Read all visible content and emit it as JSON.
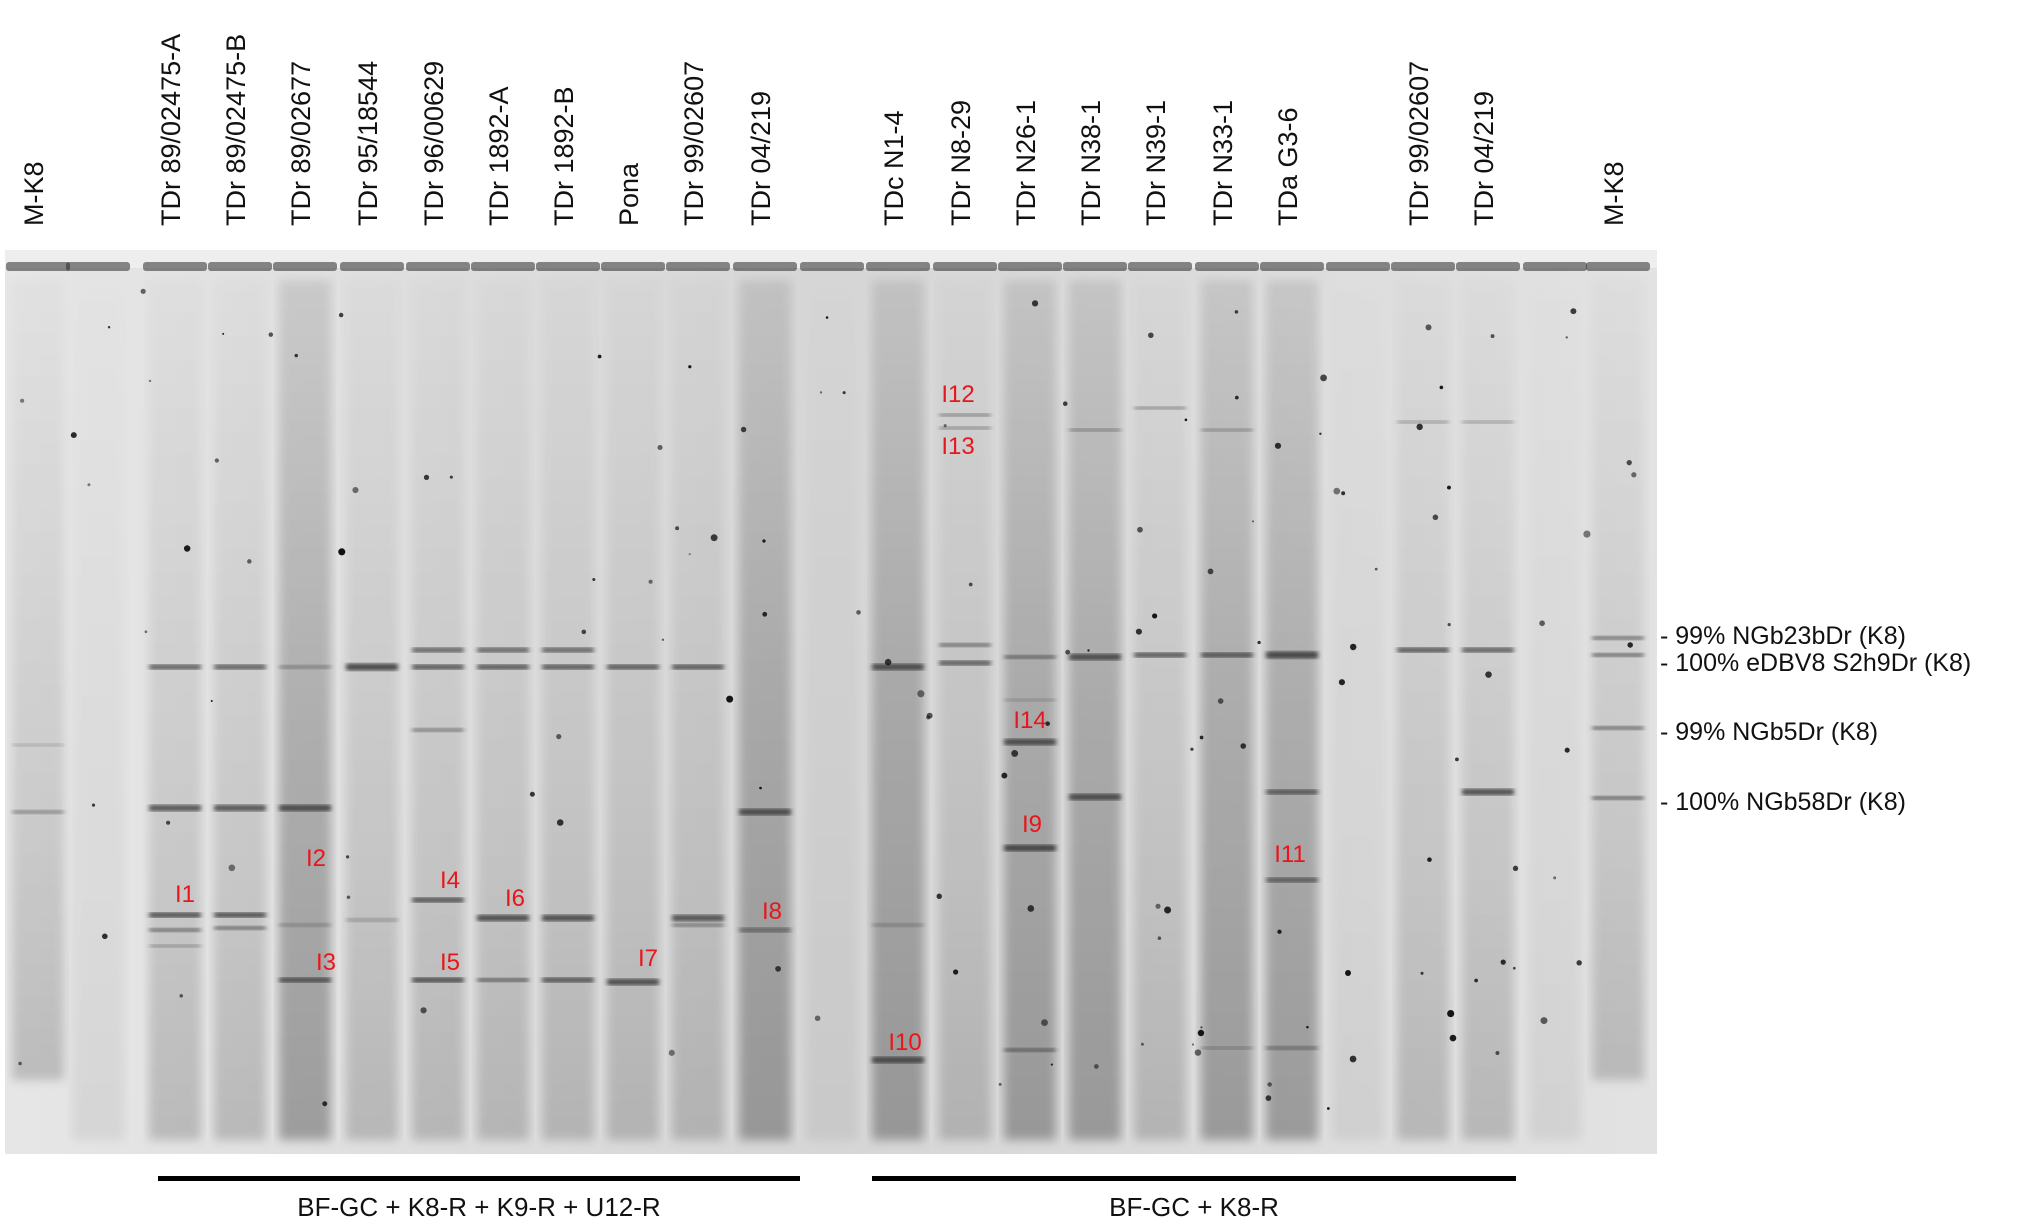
{
  "lanes": [
    {
      "label": "M-K8"
    },
    {
      "label": ""
    },
    {
      "label": "TDr 89/02475-A"
    },
    {
      "label": "TDr 89/02475-B"
    },
    {
      "label": "TDr 89/02677"
    },
    {
      "label": "TDr 95/18544"
    },
    {
      "label": "TDr 96/00629"
    },
    {
      "label": "TDr 1892-A"
    },
    {
      "label": "TDr 1892-B"
    },
    {
      "label": "Pona"
    },
    {
      "label": "TDr 99/02607"
    },
    {
      "label": "TDr 04/219"
    },
    {
      "label": ""
    },
    {
      "label": "TDc N1-4"
    },
    {
      "label": "TDr N8-29"
    },
    {
      "label": "TDr N26-1"
    },
    {
      "label": "TDr N38-1"
    },
    {
      "label": "TDr N39-1"
    },
    {
      "label": "TDr N33-1"
    },
    {
      "label": "TDa G3-6"
    },
    {
      "label": ""
    },
    {
      "label": "TDr 99/02607"
    },
    {
      "label": "TDr 04/219"
    },
    {
      "label": ""
    },
    {
      "label": "M-K8"
    }
  ],
  "band_labels": [
    "I1",
    "I2",
    "I3",
    "I4",
    "I5",
    "I6",
    "I7",
    "I8",
    "I9",
    "I10",
    "I11",
    "I12",
    "I13",
    "I14"
  ],
  "reference_bands": [
    {
      "label": "- 99% NGb23bDr (K8)"
    },
    {
      "label": "- 100% eDBV8 S2h9Dr (K8)"
    },
    {
      "label": "- 99% NGb5Dr (K8)"
    },
    {
      "label": "- 100% NGb58Dr (K8)"
    }
  ],
  "groups": [
    {
      "label": "BF-GC + K8-R + K9-R + U12-R"
    },
    {
      "label": "BF-GC + K8-R"
    }
  ],
  "colors": {
    "band_label": "#e8161b",
    "gel_background": "#dcdcdc",
    "band": "#3a3a3a"
  }
}
